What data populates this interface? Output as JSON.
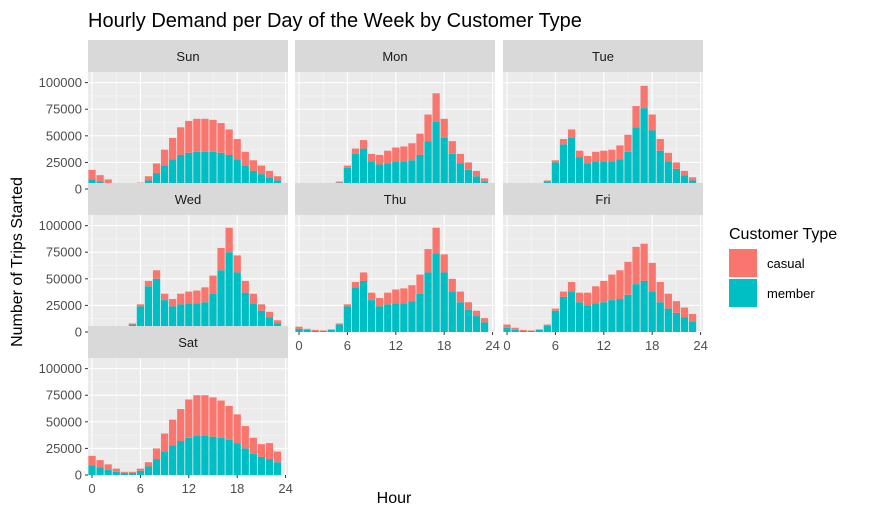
{
  "chart_data": {
    "type": "bar",
    "stacked": true,
    "title": "Hourly Demand per Day of the Week by Customer Type",
    "xlabel": "Hour",
    "ylabel": "Number of Trips Started",
    "x_ticks": [
      0,
      6,
      12,
      18,
      24
    ],
    "y_ticks": [
      0,
      25000,
      50000,
      75000,
      100000
    ],
    "ylim": [
      0,
      110000
    ],
    "legend": {
      "title": "Customer Type",
      "position": "right",
      "entries": [
        {
          "label": "casual",
          "color": "#F8766D"
        },
        {
          "label": "member",
          "color": "#00BFC4"
        }
      ]
    },
    "grid": true,
    "hours": [
      0,
      1,
      2,
      3,
      4,
      5,
      6,
      7,
      8,
      9,
      10,
      11,
      12,
      13,
      14,
      15,
      16,
      17,
      18,
      19,
      20,
      21,
      22,
      23
    ],
    "panels": [
      {
        "label": "Sun",
        "member": [
          9000,
          7000,
          5000,
          3000,
          2000,
          2000,
          4000,
          8000,
          15000,
          22000,
          28000,
          32000,
          34000,
          35000,
          35000,
          35000,
          34000,
          32000,
          28000,
          22000,
          17000,
          14000,
          11000,
          8000
        ],
        "casual": [
          9000,
          6000,
          4000,
          2000,
          1000,
          1000,
          2000,
          4000,
          9000,
          15000,
          20000,
          26000,
          30000,
          31000,
          31000,
          30000,
          28000,
          24000,
          19000,
          13000,
          10000,
          8000,
          6000,
          4000
        ]
      },
      {
        "label": "Mon",
        "member": [
          3000,
          2000,
          1000,
          1000,
          2000,
          6000,
          20000,
          33000,
          38000,
          26000,
          23000,
          24000,
          26000,
          26000,
          27000,
          32000,
          45000,
          63000,
          48000,
          33000,
          24000,
          18000,
          12000,
          7000
        ],
        "casual": [
          2000,
          1000,
          1000,
          500,
          500,
          1000,
          2000,
          5000,
          8000,
          7000,
          9000,
          12000,
          13000,
          14000,
          16000,
          20000,
          25000,
          27000,
          18000,
          12000,
          9000,
          7000,
          5000,
          3000
        ]
      },
      {
        "label": "Tue",
        "member": [
          3000,
          2000,
          1000,
          1000,
          2000,
          7000,
          25000,
          42000,
          48000,
          30000,
          24000,
          26000,
          26000,
          26000,
          28000,
          35000,
          58000,
          76000,
          55000,
          36000,
          26000,
          19000,
          13000,
          8000
        ],
        "casual": [
          2000,
          1000,
          500,
          500,
          500,
          1000,
          2000,
          5000,
          8000,
          6000,
          7000,
          9000,
          10000,
          11000,
          13000,
          16000,
          20000,
          21000,
          15000,
          11000,
          8000,
          6000,
          4000,
          3000
        ]
      },
      {
        "label": "Wed",
        "member": [
          3000,
          2000,
          1000,
          1000,
          2000,
          7000,
          24000,
          43000,
          50000,
          30000,
          24000,
          26000,
          27000,
          27000,
          28000,
          36000,
          58000,
          75000,
          56000,
          37000,
          27000,
          20000,
          14000,
          8000
        ],
        "casual": [
          2000,
          1000,
          500,
          500,
          500,
          1000,
          2000,
          5000,
          8000,
          6000,
          7000,
          10000,
          11000,
          12000,
          14000,
          17000,
          21000,
          23000,
          16000,
          11000,
          9000,
          6000,
          5000,
          3000
        ]
      },
      {
        "label": "Thu",
        "member": [
          3000,
          2000,
          1000,
          1000,
          2000,
          7000,
          24000,
          42000,
          48000,
          30000,
          24000,
          26000,
          27000,
          27000,
          29000,
          36000,
          56000,
          74000,
          56000,
          38000,
          28000,
          21000,
          15000,
          9000
        ],
        "casual": [
          2000,
          1000,
          1000,
          500,
          500,
          1000,
          2000,
          5000,
          8000,
          7000,
          8000,
          11000,
          13000,
          14000,
          15000,
          18000,
          22000,
          24000,
          17000,
          12000,
          10000,
          7000,
          5000,
          4000
        ]
      },
      {
        "label": "Fri",
        "member": [
          4000,
          2000,
          1000,
          1000,
          2000,
          6000,
          20000,
          33000,
          38000,
          28000,
          25000,
          27000,
          28000,
          30000,
          31000,
          35000,
          45000,
          48000,
          38000,
          28000,
          22000,
          18000,
          14000,
          10000
        ],
        "casual": [
          3000,
          2000,
          1000,
          500,
          500,
          1000,
          2000,
          5000,
          9000,
          9000,
          12000,
          16000,
          20000,
          24000,
          27000,
          31000,
          35000,
          35000,
          27000,
          19000,
          14000,
          11000,
          9000,
          7000
        ]
      },
      {
        "label": "Sat",
        "member": [
          9000,
          7000,
          5000,
          3000,
          2000,
          2000,
          4000,
          8000,
          15000,
          22000,
          28000,
          32000,
          35000,
          37000,
          37000,
          36000,
          35000,
          33000,
          30000,
          25000,
          20000,
          17000,
          15000,
          12000
        ],
        "casual": [
          9000,
          7000,
          5000,
          3000,
          1000,
          1000,
          2000,
          4000,
          10000,
          17000,
          24000,
          30000,
          36000,
          38000,
          38000,
          37000,
          35000,
          32000,
          27000,
          21000,
          15000,
          12000,
          15000,
          10000
        ]
      }
    ]
  }
}
